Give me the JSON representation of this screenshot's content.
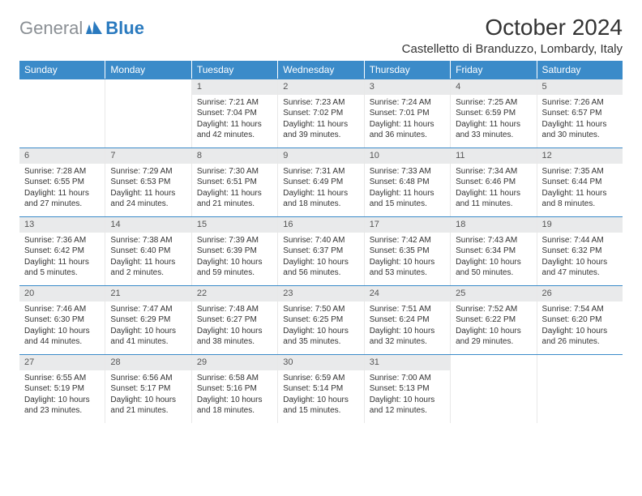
{
  "logo": {
    "text_gray": "General",
    "text_blue": "Blue"
  },
  "title": "October 2024",
  "location": "Castelletto di Branduzzo, Lombardy, Italy",
  "colors": {
    "header_bg": "#3b8bc9",
    "header_text": "#ffffff",
    "row_divider": "#3b8bc9",
    "daynum_bg": "#e9eaeb",
    "body_text": "#333333",
    "logo_gray": "#8a8f94",
    "logo_blue": "#2a7abf"
  },
  "weekdays": [
    "Sunday",
    "Monday",
    "Tuesday",
    "Wednesday",
    "Thursday",
    "Friday",
    "Saturday"
  ],
  "weeks": [
    [
      null,
      null,
      {
        "day": "1",
        "sunrise": "Sunrise: 7:21 AM",
        "sunset": "Sunset: 7:04 PM",
        "daylight": "Daylight: 11 hours and 42 minutes."
      },
      {
        "day": "2",
        "sunrise": "Sunrise: 7:23 AM",
        "sunset": "Sunset: 7:02 PM",
        "daylight": "Daylight: 11 hours and 39 minutes."
      },
      {
        "day": "3",
        "sunrise": "Sunrise: 7:24 AM",
        "sunset": "Sunset: 7:01 PM",
        "daylight": "Daylight: 11 hours and 36 minutes."
      },
      {
        "day": "4",
        "sunrise": "Sunrise: 7:25 AM",
        "sunset": "Sunset: 6:59 PM",
        "daylight": "Daylight: 11 hours and 33 minutes."
      },
      {
        "day": "5",
        "sunrise": "Sunrise: 7:26 AM",
        "sunset": "Sunset: 6:57 PM",
        "daylight": "Daylight: 11 hours and 30 minutes."
      }
    ],
    [
      {
        "day": "6",
        "sunrise": "Sunrise: 7:28 AM",
        "sunset": "Sunset: 6:55 PM",
        "daylight": "Daylight: 11 hours and 27 minutes."
      },
      {
        "day": "7",
        "sunrise": "Sunrise: 7:29 AM",
        "sunset": "Sunset: 6:53 PM",
        "daylight": "Daylight: 11 hours and 24 minutes."
      },
      {
        "day": "8",
        "sunrise": "Sunrise: 7:30 AM",
        "sunset": "Sunset: 6:51 PM",
        "daylight": "Daylight: 11 hours and 21 minutes."
      },
      {
        "day": "9",
        "sunrise": "Sunrise: 7:31 AM",
        "sunset": "Sunset: 6:49 PM",
        "daylight": "Daylight: 11 hours and 18 minutes."
      },
      {
        "day": "10",
        "sunrise": "Sunrise: 7:33 AM",
        "sunset": "Sunset: 6:48 PM",
        "daylight": "Daylight: 11 hours and 15 minutes."
      },
      {
        "day": "11",
        "sunrise": "Sunrise: 7:34 AM",
        "sunset": "Sunset: 6:46 PM",
        "daylight": "Daylight: 11 hours and 11 minutes."
      },
      {
        "day": "12",
        "sunrise": "Sunrise: 7:35 AM",
        "sunset": "Sunset: 6:44 PM",
        "daylight": "Daylight: 11 hours and 8 minutes."
      }
    ],
    [
      {
        "day": "13",
        "sunrise": "Sunrise: 7:36 AM",
        "sunset": "Sunset: 6:42 PM",
        "daylight": "Daylight: 11 hours and 5 minutes."
      },
      {
        "day": "14",
        "sunrise": "Sunrise: 7:38 AM",
        "sunset": "Sunset: 6:40 PM",
        "daylight": "Daylight: 11 hours and 2 minutes."
      },
      {
        "day": "15",
        "sunrise": "Sunrise: 7:39 AM",
        "sunset": "Sunset: 6:39 PM",
        "daylight": "Daylight: 10 hours and 59 minutes."
      },
      {
        "day": "16",
        "sunrise": "Sunrise: 7:40 AM",
        "sunset": "Sunset: 6:37 PM",
        "daylight": "Daylight: 10 hours and 56 minutes."
      },
      {
        "day": "17",
        "sunrise": "Sunrise: 7:42 AM",
        "sunset": "Sunset: 6:35 PM",
        "daylight": "Daylight: 10 hours and 53 minutes."
      },
      {
        "day": "18",
        "sunrise": "Sunrise: 7:43 AM",
        "sunset": "Sunset: 6:34 PM",
        "daylight": "Daylight: 10 hours and 50 minutes."
      },
      {
        "day": "19",
        "sunrise": "Sunrise: 7:44 AM",
        "sunset": "Sunset: 6:32 PM",
        "daylight": "Daylight: 10 hours and 47 minutes."
      }
    ],
    [
      {
        "day": "20",
        "sunrise": "Sunrise: 7:46 AM",
        "sunset": "Sunset: 6:30 PM",
        "daylight": "Daylight: 10 hours and 44 minutes."
      },
      {
        "day": "21",
        "sunrise": "Sunrise: 7:47 AM",
        "sunset": "Sunset: 6:29 PM",
        "daylight": "Daylight: 10 hours and 41 minutes."
      },
      {
        "day": "22",
        "sunrise": "Sunrise: 7:48 AM",
        "sunset": "Sunset: 6:27 PM",
        "daylight": "Daylight: 10 hours and 38 minutes."
      },
      {
        "day": "23",
        "sunrise": "Sunrise: 7:50 AM",
        "sunset": "Sunset: 6:25 PM",
        "daylight": "Daylight: 10 hours and 35 minutes."
      },
      {
        "day": "24",
        "sunrise": "Sunrise: 7:51 AM",
        "sunset": "Sunset: 6:24 PM",
        "daylight": "Daylight: 10 hours and 32 minutes."
      },
      {
        "day": "25",
        "sunrise": "Sunrise: 7:52 AM",
        "sunset": "Sunset: 6:22 PM",
        "daylight": "Daylight: 10 hours and 29 minutes."
      },
      {
        "day": "26",
        "sunrise": "Sunrise: 7:54 AM",
        "sunset": "Sunset: 6:20 PM",
        "daylight": "Daylight: 10 hours and 26 minutes."
      }
    ],
    [
      {
        "day": "27",
        "sunrise": "Sunrise: 6:55 AM",
        "sunset": "Sunset: 5:19 PM",
        "daylight": "Daylight: 10 hours and 23 minutes."
      },
      {
        "day": "28",
        "sunrise": "Sunrise: 6:56 AM",
        "sunset": "Sunset: 5:17 PM",
        "daylight": "Daylight: 10 hours and 21 minutes."
      },
      {
        "day": "29",
        "sunrise": "Sunrise: 6:58 AM",
        "sunset": "Sunset: 5:16 PM",
        "daylight": "Daylight: 10 hours and 18 minutes."
      },
      {
        "day": "30",
        "sunrise": "Sunrise: 6:59 AM",
        "sunset": "Sunset: 5:14 PM",
        "daylight": "Daylight: 10 hours and 15 minutes."
      },
      {
        "day": "31",
        "sunrise": "Sunrise: 7:00 AM",
        "sunset": "Sunset: 5:13 PM",
        "daylight": "Daylight: 10 hours and 12 minutes."
      },
      null,
      null
    ]
  ]
}
